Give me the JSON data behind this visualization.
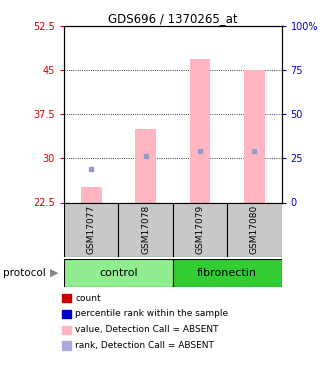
{
  "title": "GDS696 / 1370265_at",
  "samples": [
    "GSM17077",
    "GSM17078",
    "GSM17079",
    "GSM17080"
  ],
  "ylim_left": [
    22.5,
    52.5
  ],
  "ylim_right": [
    0,
    100
  ],
  "yticks_left": [
    22.5,
    30.0,
    37.5,
    45.0,
    52.5
  ],
  "ytick_labels_left": [
    "22.5",
    "30",
    "37.5",
    "45",
    "52.5"
  ],
  "yticks_right": [
    0,
    25,
    50,
    75,
    100
  ],
  "ytick_labels_right": [
    "0",
    "25",
    "50",
    "75",
    "100%"
  ],
  "pink_bar_bottom": 22.5,
  "pink_bar_tops": [
    25.2,
    35.0,
    47.0,
    45.0
  ],
  "blue_square_values": [
    28.2,
    30.5,
    31.2,
    31.2
  ],
  "pink_color": "#FFB6C1",
  "blue_color": "#9999CC",
  "bar_width": 0.38,
  "legend_items": [
    {
      "color": "#CC0000",
      "label": "count"
    },
    {
      "color": "#0000CC",
      "label": "percentile rank within the sample"
    },
    {
      "color": "#FFB6C1",
      "label": "value, Detection Call = ABSENT"
    },
    {
      "color": "#AAAADD",
      "label": "rank, Detection Call = ABSENT"
    }
  ],
  "grid_yticks": [
    30.0,
    37.5,
    45.0
  ],
  "left_color": "#CC0000",
  "right_color": "#0000CC",
  "control_color": "#90EE90",
  "fibronectin_color": "#32CD32",
  "bg_color": "#FFFFFF",
  "gray_color": "#C8C8C8"
}
